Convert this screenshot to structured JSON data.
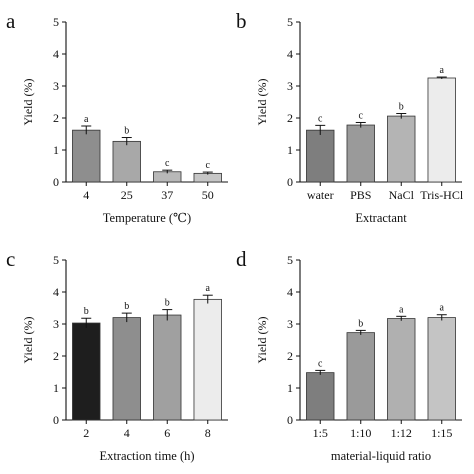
{
  "chart_data": [
    {
      "panel": "a",
      "type": "bar",
      "categories": [
        "4",
        "25",
        "37",
        "50"
      ],
      "values": [
        1.62,
        1.27,
        0.32,
        0.27
      ],
      "errors": [
        0.13,
        0.12,
        0.05,
        0.04
      ],
      "significance": [
        "a",
        "b",
        "c",
        "c"
      ],
      "colors": [
        "#8e8e8e",
        "#a8a8a8",
        "#b8b8b8",
        "#c6c6c6"
      ],
      "xlabel": "Temperature (℃)",
      "ylabel": "Yield (%)",
      "ylim": [
        0,
        5
      ],
      "yticks": [
        "0",
        "1",
        "2",
        "3",
        "4",
        "5"
      ],
      "grid": false
    },
    {
      "panel": "b",
      "type": "bar",
      "categories": [
        "water",
        "PBS",
        "NaCl",
        "Tris-HCl"
      ],
      "values": [
        1.62,
        1.78,
        2.06,
        3.25
      ],
      "errors": [
        0.15,
        0.08,
        0.08,
        0.03
      ],
      "significance": [
        "c",
        "c",
        "b",
        "a"
      ],
      "colors": [
        "#7e7e7e",
        "#9a9a9a",
        "#b4b4b4",
        "#ececec"
      ],
      "xlabel": "Extractant",
      "ylabel": "Yield (%)",
      "ylim": [
        0,
        5
      ],
      "yticks": [
        "0",
        "1",
        "2",
        "3",
        "4",
        "5"
      ],
      "grid": false
    },
    {
      "panel": "c",
      "type": "bar",
      "categories": [
        "2",
        "4",
        "6",
        "8"
      ],
      "values": [
        3.03,
        3.2,
        3.28,
        3.77
      ],
      "errors": [
        0.15,
        0.14,
        0.17,
        0.13
      ],
      "significance": [
        "b",
        "b",
        "b",
        "a"
      ],
      "colors": [
        "#1e1e1e",
        "#8e8e8e",
        "#a0a0a0",
        "#ececec"
      ],
      "xlabel": "Extraction time (h)",
      "ylabel": "Yield (%)",
      "ylim": [
        0,
        5
      ],
      "yticks": [
        "0",
        "1",
        "2",
        "3",
        "4",
        "5"
      ],
      "grid": false
    },
    {
      "panel": "d",
      "type": "bar",
      "categories": [
        "1:5",
        "1:10",
        "1:12",
        "1:15"
      ],
      "values": [
        1.48,
        2.73,
        3.17,
        3.2
      ],
      "errors": [
        0.07,
        0.07,
        0.07,
        0.09
      ],
      "significance": [
        "c",
        "b",
        "a",
        "a"
      ],
      "colors": [
        "#7e7e7e",
        "#9a9a9a",
        "#b0b0b0",
        "#c4c4c4"
      ],
      "xlabel": "material-liquid ratio",
      "ylabel": "Yield (%)",
      "ylim": [
        0,
        5
      ],
      "yticks": [
        "0",
        "1",
        "2",
        "3",
        "4",
        "5"
      ],
      "grid": false
    }
  ]
}
